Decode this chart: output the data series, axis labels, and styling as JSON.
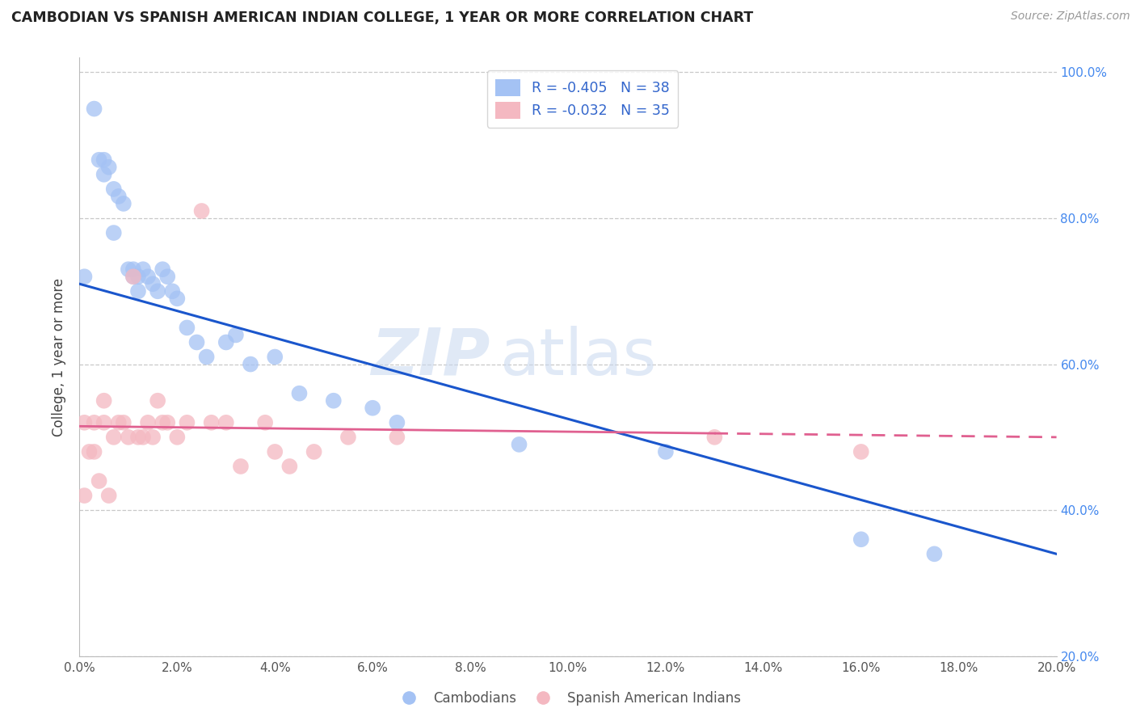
{
  "title": "CAMBODIAN VS SPANISH AMERICAN INDIAN COLLEGE, 1 YEAR OR MORE CORRELATION CHART",
  "source": "Source: ZipAtlas.com",
  "ylabel_label": "College, 1 year or more",
  "xlim": [
    0.0,
    0.2
  ],
  "ylim": [
    0.2,
    1.02
  ],
  "legend_r1": "R = -0.405",
  "legend_n1": "N = 38",
  "legend_r2": "R = -0.032",
  "legend_n2": "N = 35",
  "blue_color": "#a4c2f4",
  "pink_color": "#f4b8c1",
  "blue_line_color": "#1a56cc",
  "pink_line_color": "#e06090",
  "watermark_zip": "ZIP",
  "watermark_atlas": "atlas",
  "cambodian_x": [
    0.001,
    0.003,
    0.004,
    0.005,
    0.005,
    0.006,
    0.007,
    0.007,
    0.008,
    0.009,
    0.01,
    0.011,
    0.011,
    0.012,
    0.012,
    0.013,
    0.014,
    0.015,
    0.016,
    0.017,
    0.018,
    0.019,
    0.02,
    0.022,
    0.024,
    0.026,
    0.03,
    0.032,
    0.035,
    0.04,
    0.045,
    0.052,
    0.06,
    0.065,
    0.09,
    0.12,
    0.16,
    0.175
  ],
  "cambodian_y": [
    0.72,
    0.95,
    0.88,
    0.88,
    0.86,
    0.87,
    0.84,
    0.78,
    0.83,
    0.82,
    0.73,
    0.72,
    0.73,
    0.72,
    0.7,
    0.73,
    0.72,
    0.71,
    0.7,
    0.73,
    0.72,
    0.7,
    0.69,
    0.65,
    0.63,
    0.61,
    0.63,
    0.64,
    0.6,
    0.61,
    0.56,
    0.55,
    0.54,
    0.52,
    0.49,
    0.48,
    0.36,
    0.34
  ],
  "spanish_x": [
    0.001,
    0.001,
    0.002,
    0.003,
    0.003,
    0.004,
    0.005,
    0.005,
    0.006,
    0.007,
    0.008,
    0.009,
    0.01,
    0.011,
    0.012,
    0.013,
    0.014,
    0.015,
    0.016,
    0.017,
    0.018,
    0.02,
    0.022,
    0.025,
    0.027,
    0.03,
    0.033,
    0.038,
    0.04,
    0.043,
    0.048,
    0.055,
    0.065,
    0.13,
    0.16
  ],
  "spanish_y": [
    0.52,
    0.42,
    0.48,
    0.52,
    0.48,
    0.44,
    0.55,
    0.52,
    0.42,
    0.5,
    0.52,
    0.52,
    0.5,
    0.72,
    0.5,
    0.5,
    0.52,
    0.5,
    0.55,
    0.52,
    0.52,
    0.5,
    0.52,
    0.81,
    0.52,
    0.52,
    0.46,
    0.52,
    0.48,
    0.46,
    0.48,
    0.5,
    0.5,
    0.5,
    0.48
  ],
  "cam_line_x0": 0.0,
  "cam_line_y0": 0.71,
  "cam_line_x1": 0.2,
  "cam_line_y1": 0.34,
  "spa_line_x0": 0.0,
  "spa_line_y0": 0.515,
  "spa_line_x1_solid": 0.13,
  "spa_line_x1": 0.2,
  "spa_line_y1": 0.5
}
